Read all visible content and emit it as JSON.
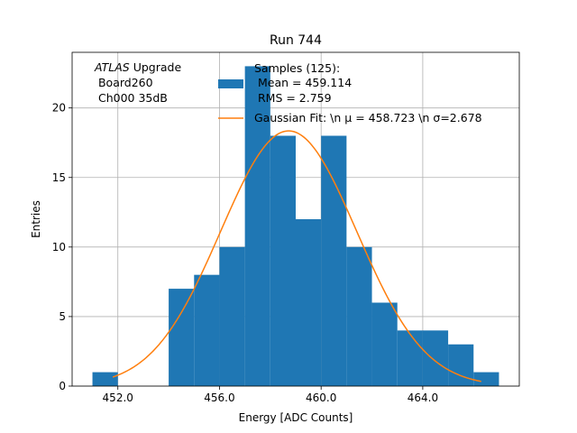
{
  "chart_data": {
    "type": "bar",
    "title": "Run 744",
    "xlabel": "Energy [ADC Counts]",
    "ylabel": "Entries",
    "xlim": [
      450.2,
      467.8
    ],
    "ylim": [
      0,
      24
    ],
    "xticks": [
      452.0,
      456.0,
      460.0,
      464.0
    ],
    "xtick_labels": [
      "452.0",
      "456.0",
      "460.0",
      "464.0"
    ],
    "yticks": [
      0,
      5,
      10,
      15,
      20
    ],
    "ytick_labels": [
      "0",
      "5",
      "10",
      "15",
      "20"
    ],
    "grid": true,
    "legend_position": "top-right",
    "bin_edges": [
      451.0,
      452.0,
      453.0,
      454.0,
      455.0,
      456.0,
      457.0,
      458.0,
      459.0,
      460.0,
      461.0,
      462.0,
      463.0,
      464.0,
      465.0,
      466.0,
      467.0
    ],
    "bin_counts": [
      1,
      0,
      0,
      7,
      8,
      10,
      23,
      18,
      12,
      18,
      10,
      6,
      4,
      4,
      3,
      1
    ],
    "histogram_color": "#1f77b4",
    "fit": {
      "mu": 458.723,
      "sigma": 2.678,
      "peak": 18.35,
      "x_range": [
        451.8,
        466.3
      ],
      "color": "#ff7f0e"
    },
    "annotation": {
      "italic": "ATLAS",
      "line1_rest": " Upgrade",
      "line2": " Board260",
      "line3": " Ch000 35dB"
    },
    "legend": {
      "hist_lines": [
        "Samples (125):",
        " Mean = 459.114",
        " RMS = 2.759"
      ],
      "fit_label": "Gaussian Fit: \\n μ = 458.723 \\n σ=2.678"
    }
  }
}
